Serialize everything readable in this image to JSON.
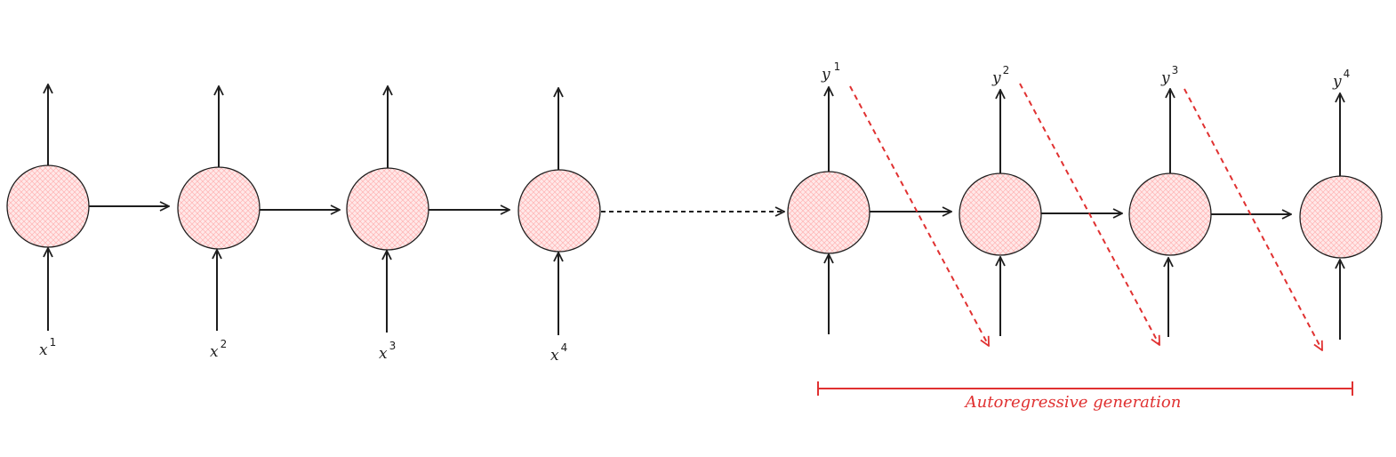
{
  "encoder": {
    "inputs": [
      {
        "base": "x",
        "sup": "1"
      },
      {
        "base": "x",
        "sup": "2"
      },
      {
        "base": "x",
        "sup": "3"
      },
      {
        "base": "x",
        "sup": "4"
      }
    ]
  },
  "decoder": {
    "outputs": [
      {
        "base": "y",
        "sup": "1"
      },
      {
        "base": "y",
        "sup": "2"
      },
      {
        "base": "y",
        "sup": "3"
      },
      {
        "base": "y",
        "sup": "4"
      }
    ]
  },
  "span": {
    "label": "Autoregressive generation"
  },
  "colors": {
    "stroke": "#1e1e1e",
    "node_fill": "#ffe3e3",
    "hatch": "#ffa8a8",
    "accent": "#e03131"
  }
}
